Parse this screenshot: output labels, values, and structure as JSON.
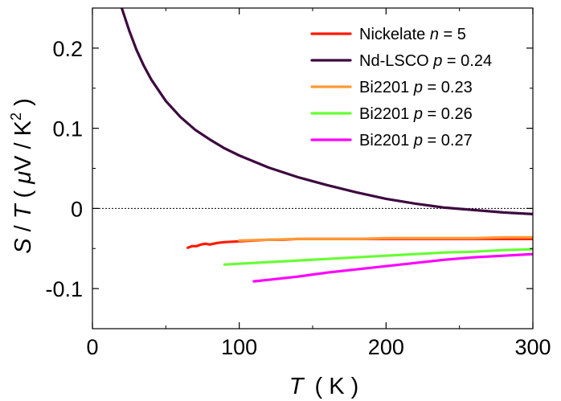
{
  "chart_data": {
    "type": "line",
    "xlabel": {
      "var": "T",
      "unit": "( K )"
    },
    "ylabel": {
      "var_s": "S",
      "sep": " / ",
      "var_t": "T",
      "open": " ( ",
      "mu": "μ",
      "unit": "V / K",
      "sup": "2",
      "close": " )"
    },
    "xlim": [
      0,
      300
    ],
    "ylim": [
      -0.15,
      0.25
    ],
    "xticks": [
      0,
      100,
      200,
      300
    ],
    "xtick_labels": [
      "0",
      "100",
      "200",
      "300"
    ],
    "xminor": [
      50,
      150,
      250
    ],
    "yticks": [
      -0.1,
      0,
      0.1,
      0.2
    ],
    "ytick_labels": [
      "-0.1",
      "0",
      "0.1",
      "0.2"
    ],
    "yminor": [
      -0.05,
      0.05,
      0.15
    ],
    "zero_line": true,
    "legend_position": "top-right",
    "series": [
      {
        "name": "Nickelate",
        "name_var": "n",
        "name_val": " = 5",
        "color": "#ff1a00",
        "x": [
          65,
          68,
          71,
          74,
          77,
          80,
          85,
          90,
          100,
          110,
          120,
          130,
          140,
          160,
          180,
          200,
          220,
          240,
          260,
          280,
          300
        ],
        "y": [
          -0.049,
          -0.047,
          -0.047,
          -0.045,
          -0.044,
          -0.045,
          -0.043,
          -0.042,
          -0.041,
          -0.04,
          -0.039,
          -0.039,
          -0.038,
          -0.038,
          -0.038,
          -0.038,
          -0.038,
          -0.038,
          -0.038,
          -0.038,
          -0.038
        ]
      },
      {
        "name": "Nd-LSCO",
        "name_var": "p",
        "name_val": " = 0.24",
        "color": "#3d0a3f",
        "x": [
          20,
          25,
          30,
          35,
          40,
          50,
          60,
          70,
          80,
          90,
          100,
          120,
          140,
          160,
          180,
          200,
          220,
          240,
          260,
          280,
          300
        ],
        "y": [
          0.25,
          0.222,
          0.198,
          0.178,
          0.161,
          0.134,
          0.114,
          0.098,
          0.086,
          0.075,
          0.066,
          0.051,
          0.039,
          0.029,
          0.02,
          0.012,
          0.006,
          0.001,
          -0.002,
          -0.005,
          -0.007
        ]
      },
      {
        "name": "Bi2201",
        "name_var": "p",
        "name_val": " = 0.23",
        "color": "#ff9933",
        "x": [
          100,
          120,
          140,
          160,
          180,
          200,
          220,
          240,
          260,
          280,
          300
        ],
        "y": [
          -0.04,
          -0.039,
          -0.038,
          -0.038,
          -0.038,
          -0.037,
          -0.037,
          -0.037,
          -0.037,
          -0.036,
          -0.036
        ]
      },
      {
        "name": "Bi2201",
        "name_var": "p",
        "name_val": " = 0.26",
        "color": "#66ff33",
        "x": [
          90,
          100,
          120,
          140,
          160,
          180,
          200,
          220,
          240,
          260,
          280,
          300
        ],
        "y": [
          -0.07,
          -0.069,
          -0.067,
          -0.065,
          -0.063,
          -0.061,
          -0.059,
          -0.057,
          -0.055,
          -0.054,
          -0.052,
          -0.051
        ]
      },
      {
        "name": "Bi2201",
        "name_var": "p",
        "name_val": " = 0.27",
        "color": "#ff00ff",
        "x": [
          110,
          120,
          140,
          160,
          180,
          200,
          220,
          240,
          260,
          280,
          300
        ],
        "y": [
          -0.091,
          -0.089,
          -0.085,
          -0.08,
          -0.076,
          -0.072,
          -0.068,
          -0.064,
          -0.061,
          -0.059,
          -0.057
        ]
      }
    ]
  }
}
